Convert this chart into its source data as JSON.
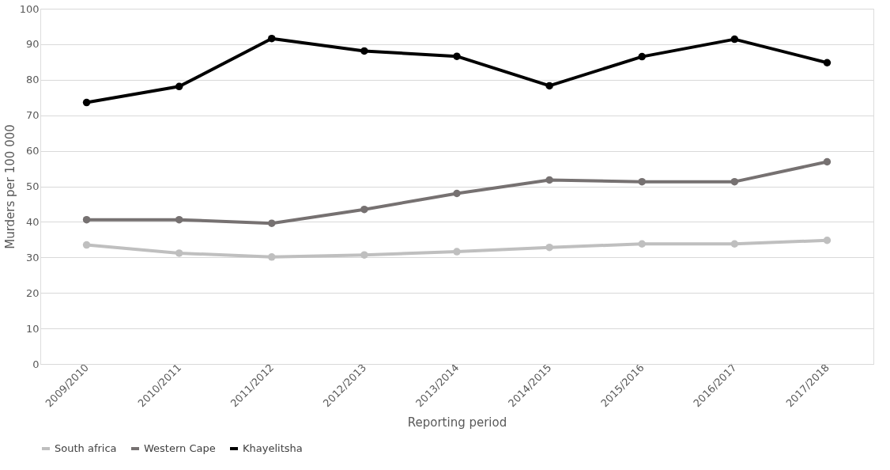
{
  "chart_data": {
    "type": "line",
    "xlabel": "Reporting period",
    "ylabel": "Murders per 100 000",
    "categories": [
      "2009/2010",
      "2010/2011",
      "2011/2012",
      "2012/2013",
      "2013/2014",
      "2014/2015",
      "2015/2016",
      "2016/2017",
      "2017/2018"
    ],
    "series": [
      {
        "name": "South africa",
        "color": "#bfbfbf",
        "values": [
          33.5,
          31.2,
          30.1,
          30.7,
          31.6,
          32.8,
          33.8,
          33.8,
          34.8
        ]
      },
      {
        "name": "Western Cape",
        "color": "#767171",
        "values": [
          40.6,
          40.6,
          39.6,
          43.5,
          48.0,
          51.8,
          51.3,
          51.3,
          56.9
        ]
      },
      {
        "name": "Khayelitsha",
        "color": "#000000",
        "values": [
          73.6,
          78.1,
          91.6,
          88.1,
          86.6,
          78.3,
          86.5,
          91.4,
          84.8
        ]
      }
    ],
    "ylim": [
      0,
      100
    ],
    "yticks": [
      0,
      10,
      20,
      30,
      40,
      50,
      60,
      70,
      80,
      90,
      100
    ],
    "grid": "y",
    "legend": "bottom",
    "marker": "circle",
    "line_style": "solid"
  }
}
